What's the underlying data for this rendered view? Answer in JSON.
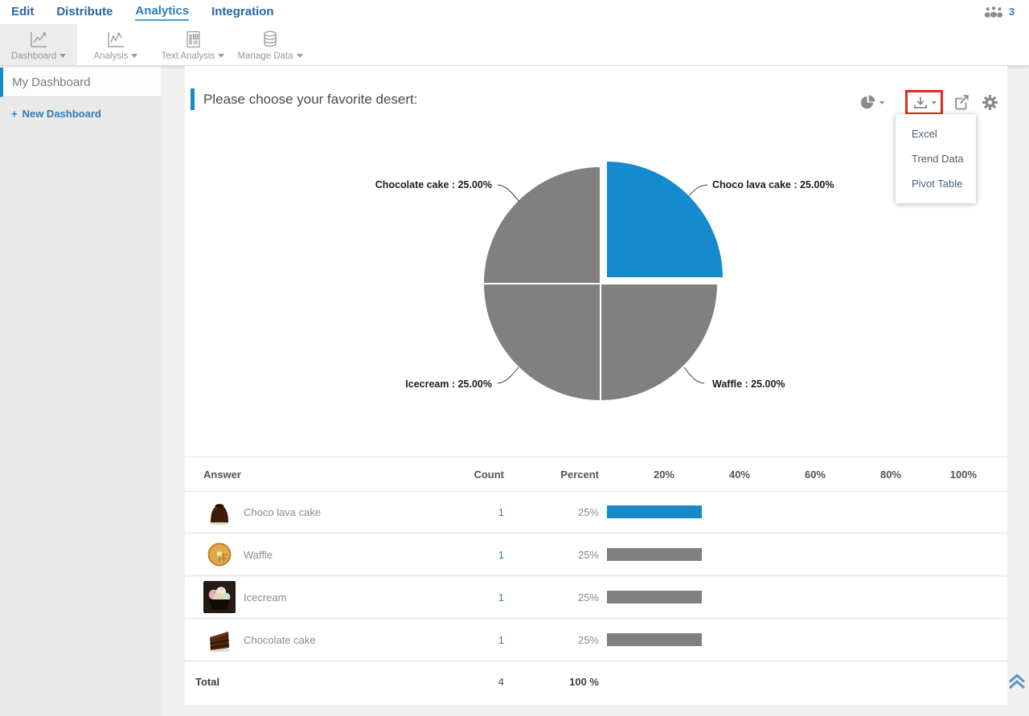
{
  "nav": {
    "items": [
      "Edit",
      "Distribute",
      "Analytics",
      "Integration"
    ],
    "active": "Analytics",
    "collaborator_count": "3"
  },
  "toolbar": {
    "tabs": [
      "Dashboard",
      "Analysis",
      "Text Analysis",
      "Manage Data"
    ],
    "active": "Dashboard"
  },
  "sidebar": {
    "current_dashboard": "My Dashboard",
    "new_dashboard_plus": "+",
    "new_dashboard_label": "New Dashboard"
  },
  "question": {
    "title": "Please choose your favorite desert:"
  },
  "export_menu": {
    "items": [
      "Excel",
      "Trend Data",
      "Pivot Table"
    ]
  },
  "chart_data": {
    "type": "pie",
    "title": "Please choose your favorite desert:",
    "labels": [
      "Choco lava cake",
      "Waffle",
      "Icecream",
      "Chocolate cake"
    ],
    "values": [
      25,
      25,
      25,
      25
    ],
    "counts": [
      1,
      1,
      1,
      1
    ],
    "colors": [
      "#1789cd",
      "#808080",
      "#808080",
      "#808080"
    ],
    "exploded_slice": "Choco lava cake",
    "legend_position": "none",
    "callouts": {
      "top_left": "Chocolate cake : 25.00%",
      "top_right": "Choco lava cake : 25.00%",
      "bottom_left": "Icecream : 25.00%",
      "bottom_right": "Waffle : 25.00%"
    }
  },
  "table": {
    "columns": {
      "answer": "Answer",
      "count": "Count",
      "percent": "Percent",
      "ticks": [
        "20%",
        "40%",
        "60%",
        "80%",
        "100%"
      ]
    },
    "rows": [
      {
        "answer": "Choco lava cake",
        "count": "1",
        "percent": "25%",
        "bar_pct": 25,
        "bar_color": "#1789cd"
      },
      {
        "answer": "Waffle",
        "count": "1",
        "percent": "25%",
        "bar_pct": 25,
        "bar_color": "#808080"
      },
      {
        "answer": "Icecream",
        "count": "1",
        "percent": "25%",
        "bar_pct": 25,
        "bar_color": "#808080"
      },
      {
        "answer": "Chocolate cake",
        "count": "1",
        "percent": "25%",
        "bar_pct": 25,
        "bar_color": "#808080"
      }
    ],
    "total": {
      "label": "Total",
      "count": "4",
      "percent": "100 %"
    }
  },
  "colors": {
    "accent_blue": "#1789cd",
    "slice_gray": "#808080",
    "nav_blue": "#26679f",
    "link_blue": "#2f7cb5",
    "highlight_red": "#e02b20"
  }
}
